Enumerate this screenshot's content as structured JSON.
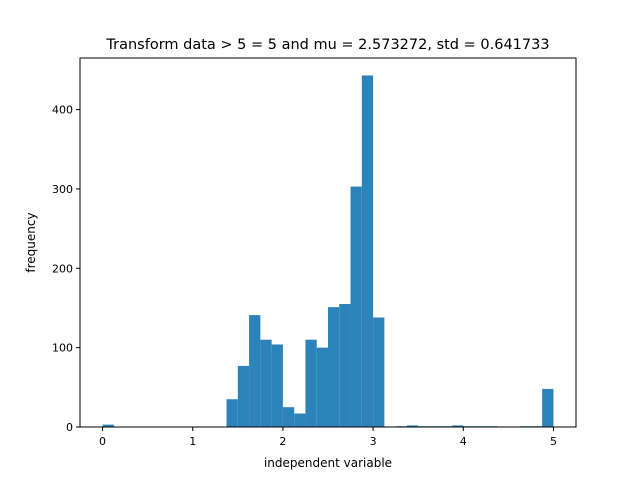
{
  "chart_data": {
    "type": "bar",
    "title": "Transform data > 5 = 5 and mu = 2.573272,  std = 0.641733",
    "xlabel": "independent variable",
    "ylabel": "frequency",
    "xlim": [
      -0.25,
      5.25
    ],
    "ylim": [
      0,
      465
    ],
    "xticks": [
      "0",
      "1",
      "2",
      "3",
      "4",
      "5"
    ],
    "yticks": [
      "0",
      "100",
      "200",
      "300",
      "400"
    ],
    "bin_width": 0.125,
    "bar_color": "#2b83ba",
    "bins": [
      {
        "x": 0.0,
        "value": 3
      },
      {
        "x": 0.125,
        "value": 0
      },
      {
        "x": 0.25,
        "value": 0
      },
      {
        "x": 0.375,
        "value": 0
      },
      {
        "x": 0.5,
        "value": 0
      },
      {
        "x": 0.625,
        "value": 0
      },
      {
        "x": 0.75,
        "value": 0
      },
      {
        "x": 0.875,
        "value": 0
      },
      {
        "x": 1.0,
        "value": 0
      },
      {
        "x": 1.125,
        "value": 0
      },
      {
        "x": 1.25,
        "value": 0
      },
      {
        "x": 1.375,
        "value": 35
      },
      {
        "x": 1.5,
        "value": 77
      },
      {
        "x": 1.625,
        "value": 141
      },
      {
        "x": 1.75,
        "value": 110
      },
      {
        "x": 1.875,
        "value": 104
      },
      {
        "x": 2.0,
        "value": 25
      },
      {
        "x": 2.125,
        "value": 17
      },
      {
        "x": 2.25,
        "value": 110
      },
      {
        "x": 2.375,
        "value": 100
      },
      {
        "x": 2.5,
        "value": 151
      },
      {
        "x": 2.625,
        "value": 155
      },
      {
        "x": 2.75,
        "value": 303
      },
      {
        "x": 2.875,
        "value": 443
      },
      {
        "x": 3.0,
        "value": 138
      },
      {
        "x": 3.125,
        "value": 0
      },
      {
        "x": 3.25,
        "value": 1
      },
      {
        "x": 3.375,
        "value": 2
      },
      {
        "x": 3.5,
        "value": 1
      },
      {
        "x": 3.625,
        "value": 1
      },
      {
        "x": 3.75,
        "value": 1
      },
      {
        "x": 3.875,
        "value": 2
      },
      {
        "x": 4.0,
        "value": 1
      },
      {
        "x": 4.125,
        "value": 1
      },
      {
        "x": 4.25,
        "value": 1
      },
      {
        "x": 4.375,
        "value": 0
      },
      {
        "x": 4.5,
        "value": 0
      },
      {
        "x": 4.625,
        "value": 1
      },
      {
        "x": 4.75,
        "value": 1
      },
      {
        "x": 4.875,
        "value": 48
      }
    ]
  }
}
